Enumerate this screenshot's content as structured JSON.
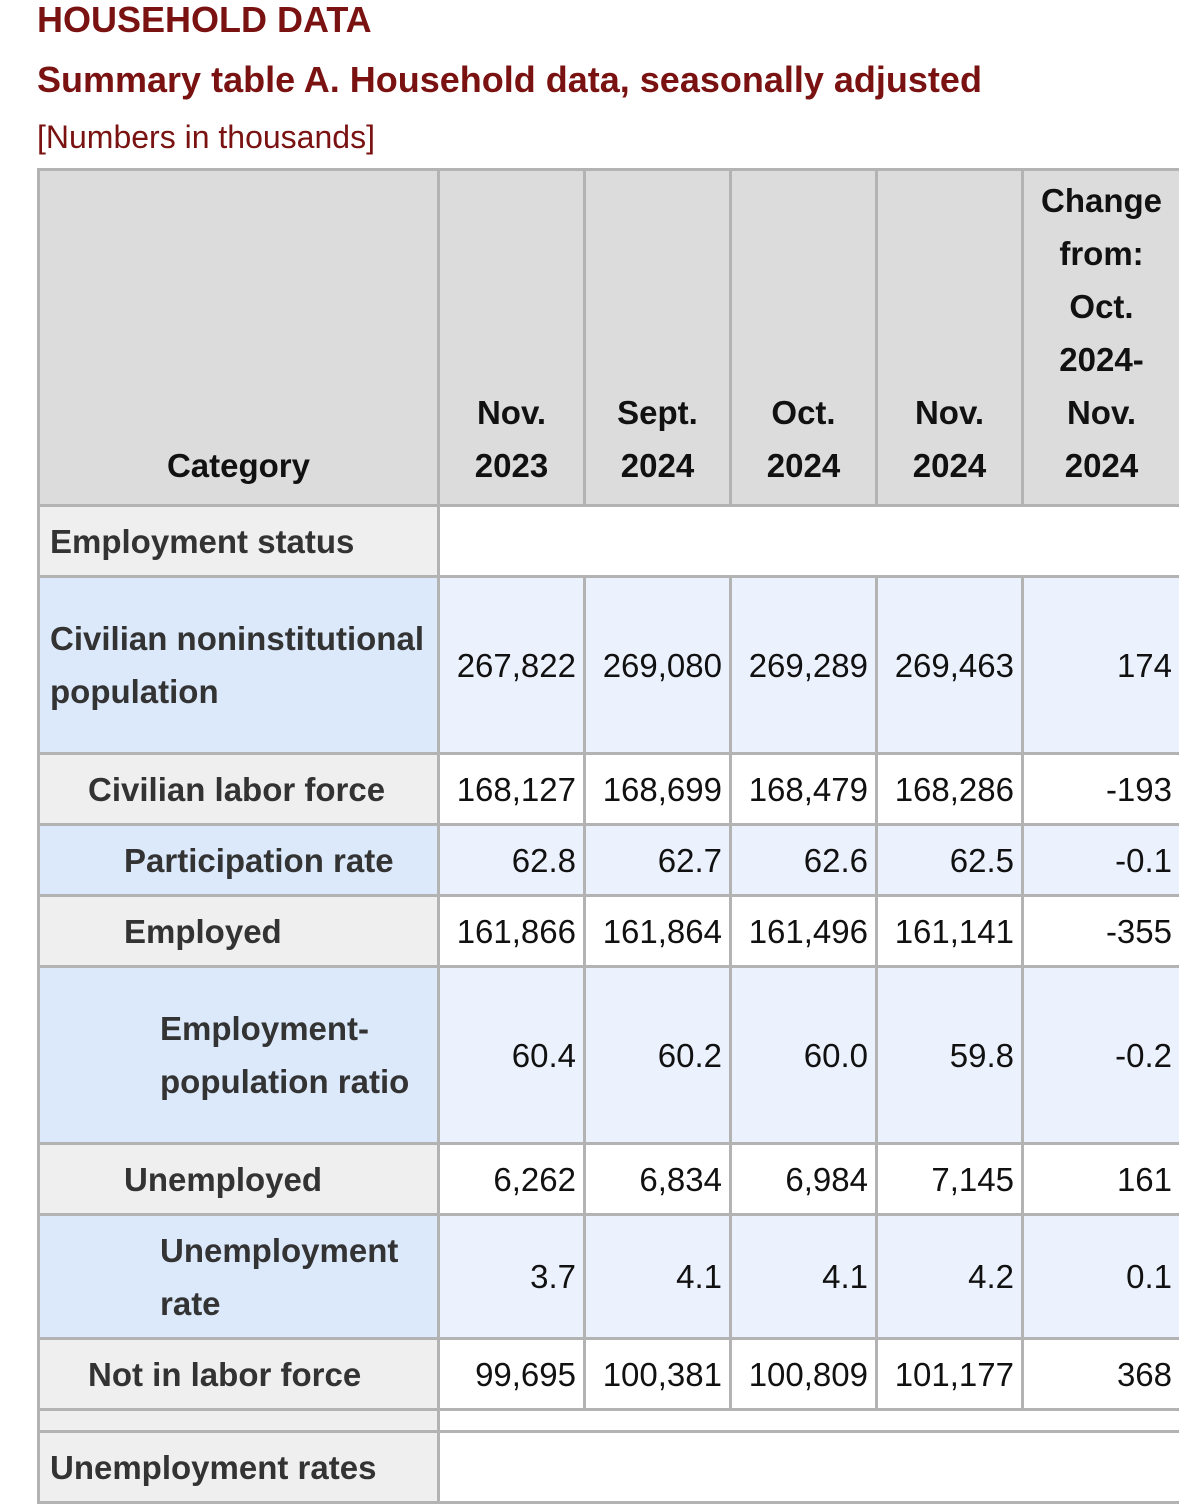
{
  "header": {
    "title": "HOUSEHOLD DATA",
    "subtitle": "Summary table A. Household data, seasonally adjusted",
    "note": "[Numbers in thousands]"
  },
  "table": {
    "columns": {
      "category": "Category",
      "c1": "Nov. 2023",
      "c2": "Sept. 2024",
      "c3": "Oct. 2024",
      "c4": "Nov. 2024",
      "change": "Change from: Oct. 2024-Nov. 2024"
    },
    "section_employment": "Employment status",
    "rows": [
      {
        "label": "Civilian noninstitutional population",
        "c1": "267,822",
        "c2": "269,080",
        "c3": "269,289",
        "c4": "269,463",
        "change": "174"
      },
      {
        "label": "Civilian labor force",
        "c1": "168,127",
        "c2": "168,699",
        "c3": "168,479",
        "c4": "168,286",
        "change": "-193"
      },
      {
        "label": "Participation rate",
        "c1": "62.8",
        "c2": "62.7",
        "c3": "62.6",
        "c4": "62.5",
        "change": "-0.1"
      },
      {
        "label": "Employed",
        "c1": "161,866",
        "c2": "161,864",
        "c3": "161,496",
        "c4": "161,141",
        "change": "-355"
      },
      {
        "label": "Employment-population ratio",
        "c1": "60.4",
        "c2": "60.2",
        "c3": "60.0",
        "c4": "59.8",
        "change": "-0.2"
      },
      {
        "label": "Unemployed",
        "c1": "6,262",
        "c2": "6,834",
        "c3": "6,984",
        "c4": "7,145",
        "change": "161"
      },
      {
        "label": "Unemployment rate",
        "c1": "3.7",
        "c2": "4.1",
        "c3": "4.1",
        "c4": "4.2",
        "change": "0.1"
      },
      {
        "label": "Not in labor force",
        "c1": "99,695",
        "c2": "100,381",
        "c3": "100,809",
        "c4": "101,177",
        "change": "368"
      }
    ],
    "section_unemployment_rates": "Unemployment rates"
  }
}
